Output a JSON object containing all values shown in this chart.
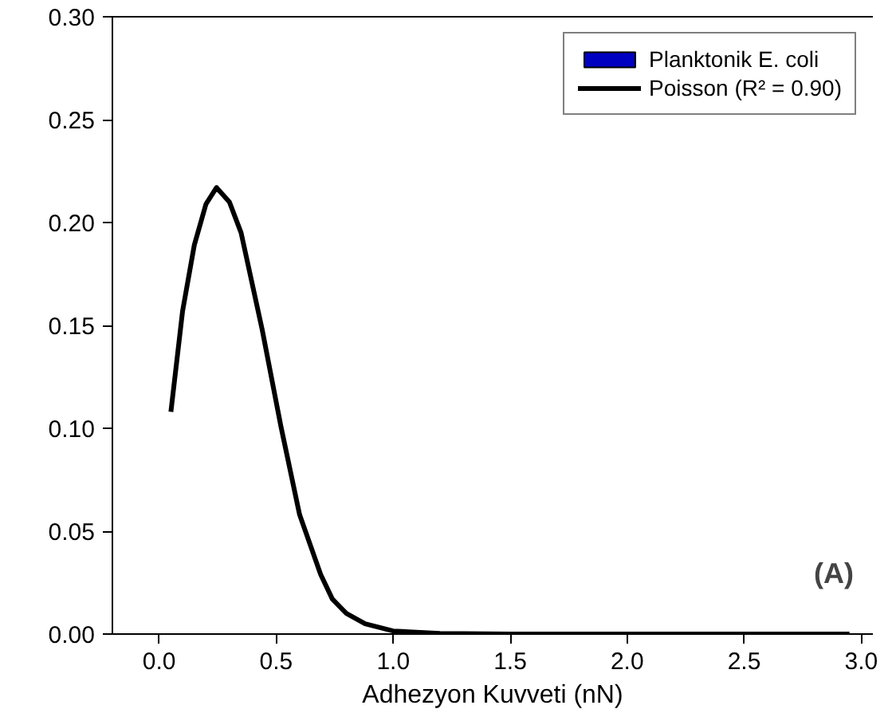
{
  "chart_data": {
    "type": "line",
    "xlabel": "Adhezyon Kuvveti (nN)",
    "xlim": [
      -0.2,
      3.05
    ],
    "xticks": [
      {
        "value": 0,
        "label": "0.0"
      },
      {
        "value": 0.5,
        "label": "0.5"
      },
      {
        "value": 1,
        "label": "1.0"
      },
      {
        "value": 1.5,
        "label": "1.5"
      },
      {
        "value": 2,
        "label": "2.0"
      },
      {
        "value": 2.5,
        "label": "2.5"
      },
      {
        "value": 3,
        "label": "3.0"
      }
    ],
    "ylim": [
      0,
      0.3
    ],
    "yticks": [
      {
        "value": 0,
        "label": "0.00"
      },
      {
        "value": 0.05,
        "label": "0.05"
      },
      {
        "value": 0.1,
        "label": "0.10"
      },
      {
        "value": 0.15,
        "label": "0.15"
      },
      {
        "value": 0.2,
        "label": "0.20"
      },
      {
        "value": 0.25,
        "label": "0.25"
      },
      {
        "value": 0.3,
        "label": "0.30"
      }
    ],
    "grid": false,
    "legend": "top right",
    "annotations": [
      "(A)"
    ],
    "series": [
      {
        "name": "Planktonik E. coli",
        "type": "bar",
        "color": "#0000c0"
      },
      {
        "name": "Poisson (R² = 0.90)",
        "color": "#000000",
        "x": [
          0.05,
          0.1,
          0.15,
          0.2,
          0.245,
          0.3,
          0.35,
          0.44,
          0.52,
          0.6,
          0.69,
          0.74,
          0.8,
          0.88,
          1.0,
          1.2,
          1.5,
          2.0,
          2.5,
          2.95
        ],
        "values": [
          0.108,
          0.157,
          0.189,
          0.209,
          0.217,
          0.21,
          0.195,
          0.148,
          0.101,
          0.058,
          0.029,
          0.017,
          0.01,
          0.005,
          0.0015,
          0.0003,
          0.0,
          0.0,
          0.0,
          0.0
        ]
      }
    ]
  }
}
